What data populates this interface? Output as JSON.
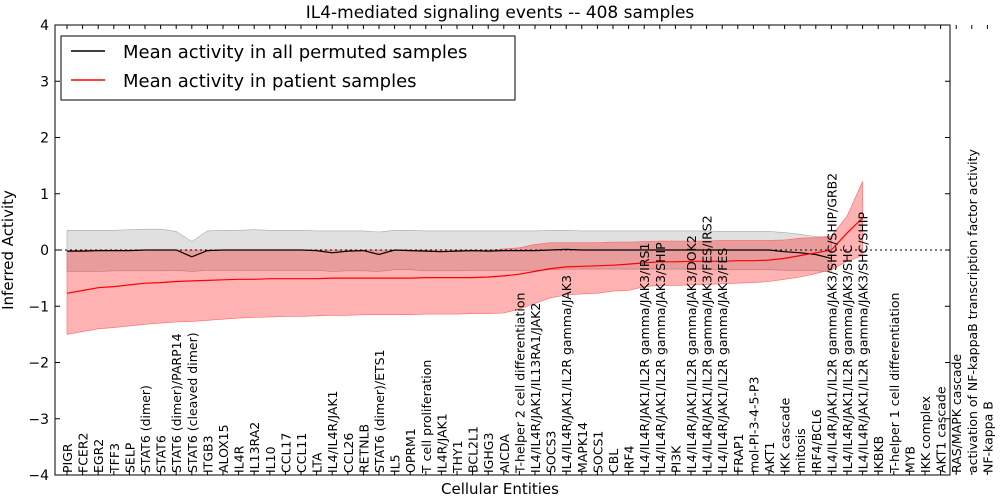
{
  "chart_data": {
    "type": "line",
    "title": "IL4-mediated signaling events -- 408 samples",
    "xlabel": "Cellular Entities",
    "ylabel": "Inferred Activity",
    "ylim": [
      -4,
      4
    ],
    "yticks": [
      -4,
      -3,
      -2,
      -1,
      0,
      1,
      2,
      3,
      4
    ],
    "ytick_labels": [
      "−4",
      "−3",
      "−2",
      "−1",
      "0",
      "1",
      "2",
      "3",
      "4"
    ],
    "legend": {
      "position": "top-left",
      "entries": [
        {
          "label": "Mean activity in all permuted samples",
          "color": "#000000"
        },
        {
          "label": "Mean activity in patient samples",
          "color": "#ff0000"
        }
      ]
    },
    "categories": [
      "PIGR",
      "FCER2",
      "EGR2",
      "TFF3",
      "SELP",
      "STAT6 (dimer)",
      "STAT6",
      "STAT6 (dimer)/PARP14",
      "STAT6 (cleaved dimer)",
      "ITGB3",
      "ALOX15",
      "IL4R",
      "IL13RA2",
      "IL10",
      "CCL17",
      "CCL11",
      "LTA",
      "IL4/IL4R/JAK1",
      "CCL26",
      "RETNLB",
      "STAT6 (dimer)/ETS1",
      "IL5",
      "OPRM1",
      "T cell proliferation",
      "IL4R/JAK1",
      "THY1",
      "BCL2L1",
      "IGHG3",
      "AICDA",
      "T-helper 2 cell differentiation",
      "IL4/IL4R/JAK1/IL13RA1/JAK2",
      "SOCS3",
      "IL4/IL4R/JAK1/IL2R gamma/JAK3",
      "MAPK14",
      "SOCS1",
      "CBL",
      "IRF4",
      "IL4/IL4R/JAK1/IL2R gamma/JAK3/IRS1",
      "IL4/IL4R/JAK1/IL2R gamma/JAK3/SHIP",
      "PI3K",
      "IL4/IL4R/JAK1/IL2R gamma/JAK3/DOK2",
      "IL4/IL4R/JAK1/IL2R gamma/JAK3/FES/IRS2",
      "IL4/IL4R/JAK1/IL2R gamma/JAK3/FES",
      "FRAP1",
      "mol-PI-3-4-5-P3",
      "AKT1",
      "IKK cascade",
      "mitosis",
      "IRF4/BCL6",
      "IL4/IL4R/JAK1/IL2R gamma/JAK3/SHC/SHIP/GRB2",
      "IL4/IL4R/JAK1/IL2R gamma/JAK3/SHC",
      "IL4/IL4R/JAK1/IL2R gamma/JAK3/SHC/SHIP",
      "IKBKB",
      "T-helper 1 cell differentiation",
      "MYB",
      "IKK complex",
      "AKT1 cascade",
      "RAS/MAPK cascade",
      "activation of NF-kappaB transcription factor activity",
      "NF-kappa B"
    ],
    "series": [
      {
        "name": "Mean activity in all permuted samples",
        "color": "#000000",
        "x": [
          0,
          1,
          2,
          3,
          4,
          5,
          6,
          7,
          8,
          9,
          10,
          11,
          12,
          13,
          14,
          15,
          16,
          17,
          18,
          19,
          20,
          21,
          22,
          23,
          24,
          25,
          26,
          27,
          28,
          29,
          30,
          31,
          32,
          33,
          34,
          35,
          36,
          37,
          38,
          39,
          40,
          41,
          42,
          43,
          44,
          45,
          46,
          47,
          48,
          49
        ],
        "values": [
          -0.02,
          -0.02,
          -0.01,
          -0.01,
          -0.01,
          0.0,
          0.0,
          0.0,
          -0.12,
          -0.01,
          0.0,
          0.0,
          0.0,
          0.0,
          0.0,
          0.0,
          -0.01,
          -0.05,
          -0.02,
          -0.01,
          -0.08,
          0.0,
          -0.01,
          -0.02,
          -0.03,
          -0.02,
          -0.01,
          -0.02,
          -0.01,
          -0.01,
          -0.01,
          0.0,
          0.01,
          0.0,
          0.0,
          0.0,
          0.0,
          0.0,
          0.0,
          0.0,
          0.0,
          0.0,
          0.0,
          0.0,
          0.0,
          0.0,
          -0.03,
          -0.05,
          -0.08,
          -0.15
        ],
        "upper": [
          0.35,
          0.35,
          0.35,
          0.35,
          0.36,
          0.37,
          0.37,
          0.33,
          0.15,
          0.34,
          0.35,
          0.35,
          0.36,
          0.35,
          0.35,
          0.35,
          0.34,
          0.34,
          0.34,
          0.34,
          0.32,
          0.35,
          0.35,
          0.34,
          0.34,
          0.34,
          0.34,
          0.34,
          0.34,
          0.34,
          0.34,
          0.35,
          0.35,
          0.34,
          0.34,
          0.34,
          0.34,
          0.34,
          0.34,
          0.34,
          0.34,
          0.34,
          0.33,
          0.33,
          0.33,
          0.33,
          0.31,
          0.28,
          0.24,
          0.22
        ],
        "lower": [
          -0.38,
          -0.38,
          -0.38,
          -0.37,
          -0.37,
          -0.37,
          -0.37,
          -0.36,
          -0.38,
          -0.36,
          -0.36,
          -0.36,
          -0.36,
          -0.36,
          -0.36,
          -0.36,
          -0.36,
          -0.38,
          -0.37,
          -0.37,
          -0.38,
          -0.35,
          -0.35,
          -0.37,
          -0.37,
          -0.37,
          -0.36,
          -0.36,
          -0.36,
          -0.36,
          -0.36,
          -0.35,
          -0.34,
          -0.34,
          -0.34,
          -0.34,
          -0.34,
          -0.34,
          -0.34,
          -0.34,
          -0.34,
          -0.34,
          -0.35,
          -0.35,
          -0.35,
          -0.35,
          -0.36,
          -0.36,
          -0.36,
          -0.4
        ]
      },
      {
        "name": "Mean activity in patient samples",
        "color": "#ff0000",
        "x": [
          0,
          1,
          2,
          3,
          4,
          5,
          6,
          7,
          8,
          9,
          10,
          11,
          12,
          13,
          14,
          15,
          16,
          17,
          18,
          19,
          20,
          21,
          22,
          23,
          24,
          25,
          26,
          27,
          28,
          29,
          30,
          31,
          32,
          33,
          34,
          35,
          36,
          37,
          38,
          39,
          40,
          41,
          42,
          43,
          44,
          45,
          46,
          47,
          48,
          49,
          50,
          51
        ],
        "values": [
          -0.77,
          -0.72,
          -0.67,
          -0.65,
          -0.62,
          -0.59,
          -0.58,
          -0.56,
          -0.55,
          -0.54,
          -0.53,
          -0.52,
          -0.52,
          -0.51,
          -0.51,
          -0.51,
          -0.51,
          -0.5,
          -0.5,
          -0.5,
          -0.5,
          -0.5,
          -0.5,
          -0.49,
          -0.49,
          -0.49,
          -0.49,
          -0.48,
          -0.46,
          -0.43,
          -0.38,
          -0.33,
          -0.3,
          -0.29,
          -0.28,
          -0.27,
          -0.25,
          -0.23,
          -0.21,
          -0.21,
          -0.2,
          -0.2,
          -0.2,
          -0.19,
          -0.19,
          -0.18,
          -0.15,
          -0.1,
          -0.05,
          0.0,
          0.3,
          0.57
        ],
        "upper": [
          -0.01,
          0.0,
          0.0,
          0.0,
          0.0,
          0.0,
          0.0,
          0.0,
          0.0,
          0.0,
          0.0,
          0.0,
          0.0,
          0.0,
          0.0,
          0.0,
          0.0,
          0.0,
          0.0,
          0.0,
          0.0,
          0.0,
          0.0,
          0.0,
          0.0,
          0.0,
          0.0,
          0.0,
          0.02,
          0.04,
          0.1,
          0.13,
          0.13,
          0.13,
          0.13,
          0.14,
          0.14,
          0.15,
          0.16,
          0.16,
          0.16,
          0.16,
          0.17,
          0.17,
          0.17,
          0.17,
          0.18,
          0.21,
          0.22,
          0.25,
          0.6,
          1.22
        ],
        "lower": [
          -1.5,
          -1.45,
          -1.4,
          -1.38,
          -1.35,
          -1.32,
          -1.3,
          -1.28,
          -1.27,
          -1.25,
          -1.23,
          -1.21,
          -1.2,
          -1.19,
          -1.18,
          -1.18,
          -1.17,
          -1.16,
          -1.16,
          -1.15,
          -1.15,
          -1.15,
          -1.15,
          -1.14,
          -1.14,
          -1.14,
          -1.13,
          -1.13,
          -1.12,
          -1.05,
          -0.95,
          -0.85,
          -0.8,
          -0.78,
          -0.77,
          -0.73,
          -0.72,
          -0.65,
          -0.63,
          -0.63,
          -0.62,
          -0.61,
          -0.6,
          -0.59,
          -0.58,
          -0.56,
          -0.52,
          -0.48,
          -0.42,
          -0.35,
          -0.2,
          -0.1
        ]
      }
    ]
  }
}
